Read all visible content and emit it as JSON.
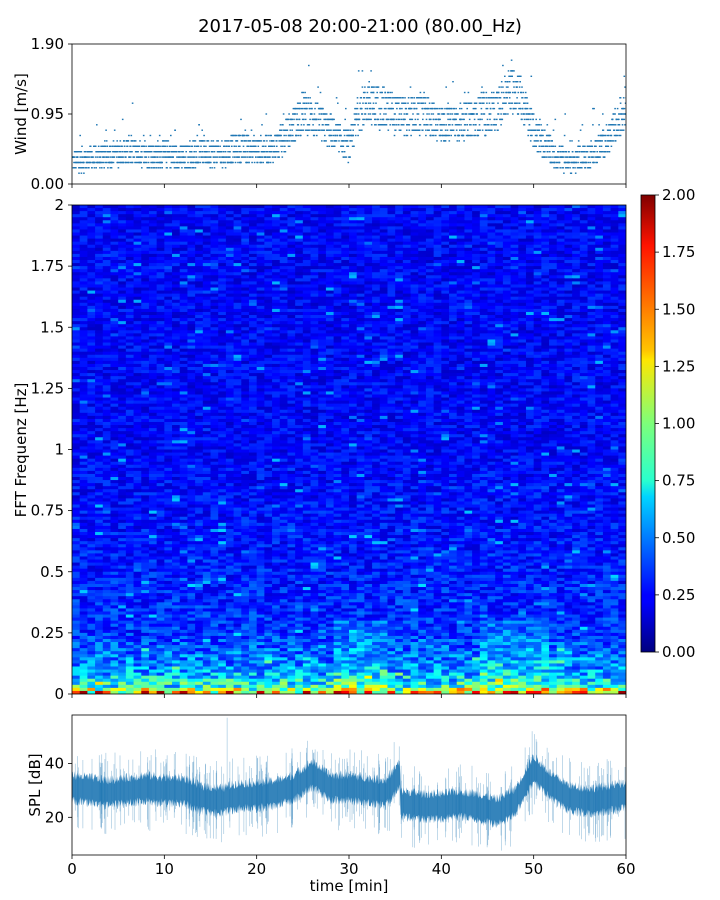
{
  "figure": {
    "title": "2017-05-08 20:00-21:00 (80.00_Hz)"
  },
  "chart_data": [
    {
      "type": "scatter",
      "ylabel": "Wind [m/s]",
      "xlim": [
        0,
        60
      ],
      "ylim": [
        0,
        1.9
      ],
      "yticks": [
        "0.00",
        "0.95",
        "1.90"
      ],
      "xticks": [
        0,
        10,
        20,
        30,
        40,
        50,
        60
      ],
      "color": "#1f77b4",
      "series": [
        {
          "x": [
            0,
            2,
            4,
            6,
            8,
            10,
            12,
            14,
            16,
            18,
            20,
            22,
            24,
            25,
            26,
            28,
            30,
            31,
            32,
            34,
            36,
            38,
            40,
            42,
            44,
            46,
            47,
            48,
            50,
            52,
            54,
            56,
            58,
            59,
            60
          ],
          "y": [
            0.3,
            0.35,
            0.4,
            0.45,
            0.4,
            0.4,
            0.35,
            0.45,
            0.4,
            0.5,
            0.45,
            0.5,
            0.8,
            1.0,
            0.9,
            0.7,
            0.5,
            1.0,
            1.1,
            1.0,
            0.9,
            0.95,
            0.8,
            0.85,
            0.9,
            1.0,
            1.2,
            1.3,
            0.7,
            0.4,
            0.3,
            0.4,
            0.6,
            0.8,
            1.1
          ]
        }
      ]
    },
    {
      "type": "heatmap",
      "ylabel": "FFT Frequenz [Hz]",
      "xlim": [
        0,
        60
      ],
      "ylim": [
        0,
        2
      ],
      "yticks": [
        "0",
        "0.25",
        "0.5",
        "0.75",
        "1",
        "1.25",
        "1.5",
        "1.75",
        "2"
      ],
      "colormap": "jet",
      "colorbar": {
        "min": 0,
        "max": 2,
        "ticks": [
          "0.00",
          "0.25",
          "0.50",
          "0.75",
          "1.00",
          "1.25",
          "1.50",
          "1.75",
          "2.00"
        ]
      },
      "level_by_frequency": [
        {
          "freq": 0.0,
          "value": 1.5
        },
        {
          "freq": 0.03,
          "value": 0.8
        },
        {
          "freq": 0.1,
          "value": 0.55
        },
        {
          "freq": 0.25,
          "value": 0.35
        },
        {
          "freq": 0.5,
          "value": 0.3
        },
        {
          "freq": 1.0,
          "value": 0.25
        },
        {
          "freq": 2.0,
          "value": 0.25
        }
      ]
    },
    {
      "type": "line",
      "xlabel": "time [min]",
      "ylabel": "SPL [dB]",
      "xlim": [
        0,
        60
      ],
      "ylim": [
        6,
        58
      ],
      "yticks": [
        20,
        40
      ],
      "xticks": [
        0,
        10,
        20,
        30,
        40,
        50,
        60
      ],
      "color": "#1f77b4",
      "series": [
        {
          "x": [
            0,
            2,
            4,
            6,
            8,
            10,
            12,
            14,
            16,
            18,
            20,
            22,
            24,
            26,
            28,
            30,
            32,
            34,
            35.5,
            35.6,
            36,
            38,
            40,
            42,
            44,
            46,
            48,
            50,
            52,
            54,
            56,
            58,
            60
          ],
          "y": [
            31,
            30,
            29,
            30,
            31,
            30,
            30,
            27,
            26,
            28,
            28,
            29,
            31,
            36,
            31,
            31,
            30,
            29,
            36,
            25,
            25,
            24,
            24,
            25,
            24,
            22,
            26,
            38,
            31,
            27,
            26,
            27,
            28
          ]
        }
      ]
    }
  ]
}
